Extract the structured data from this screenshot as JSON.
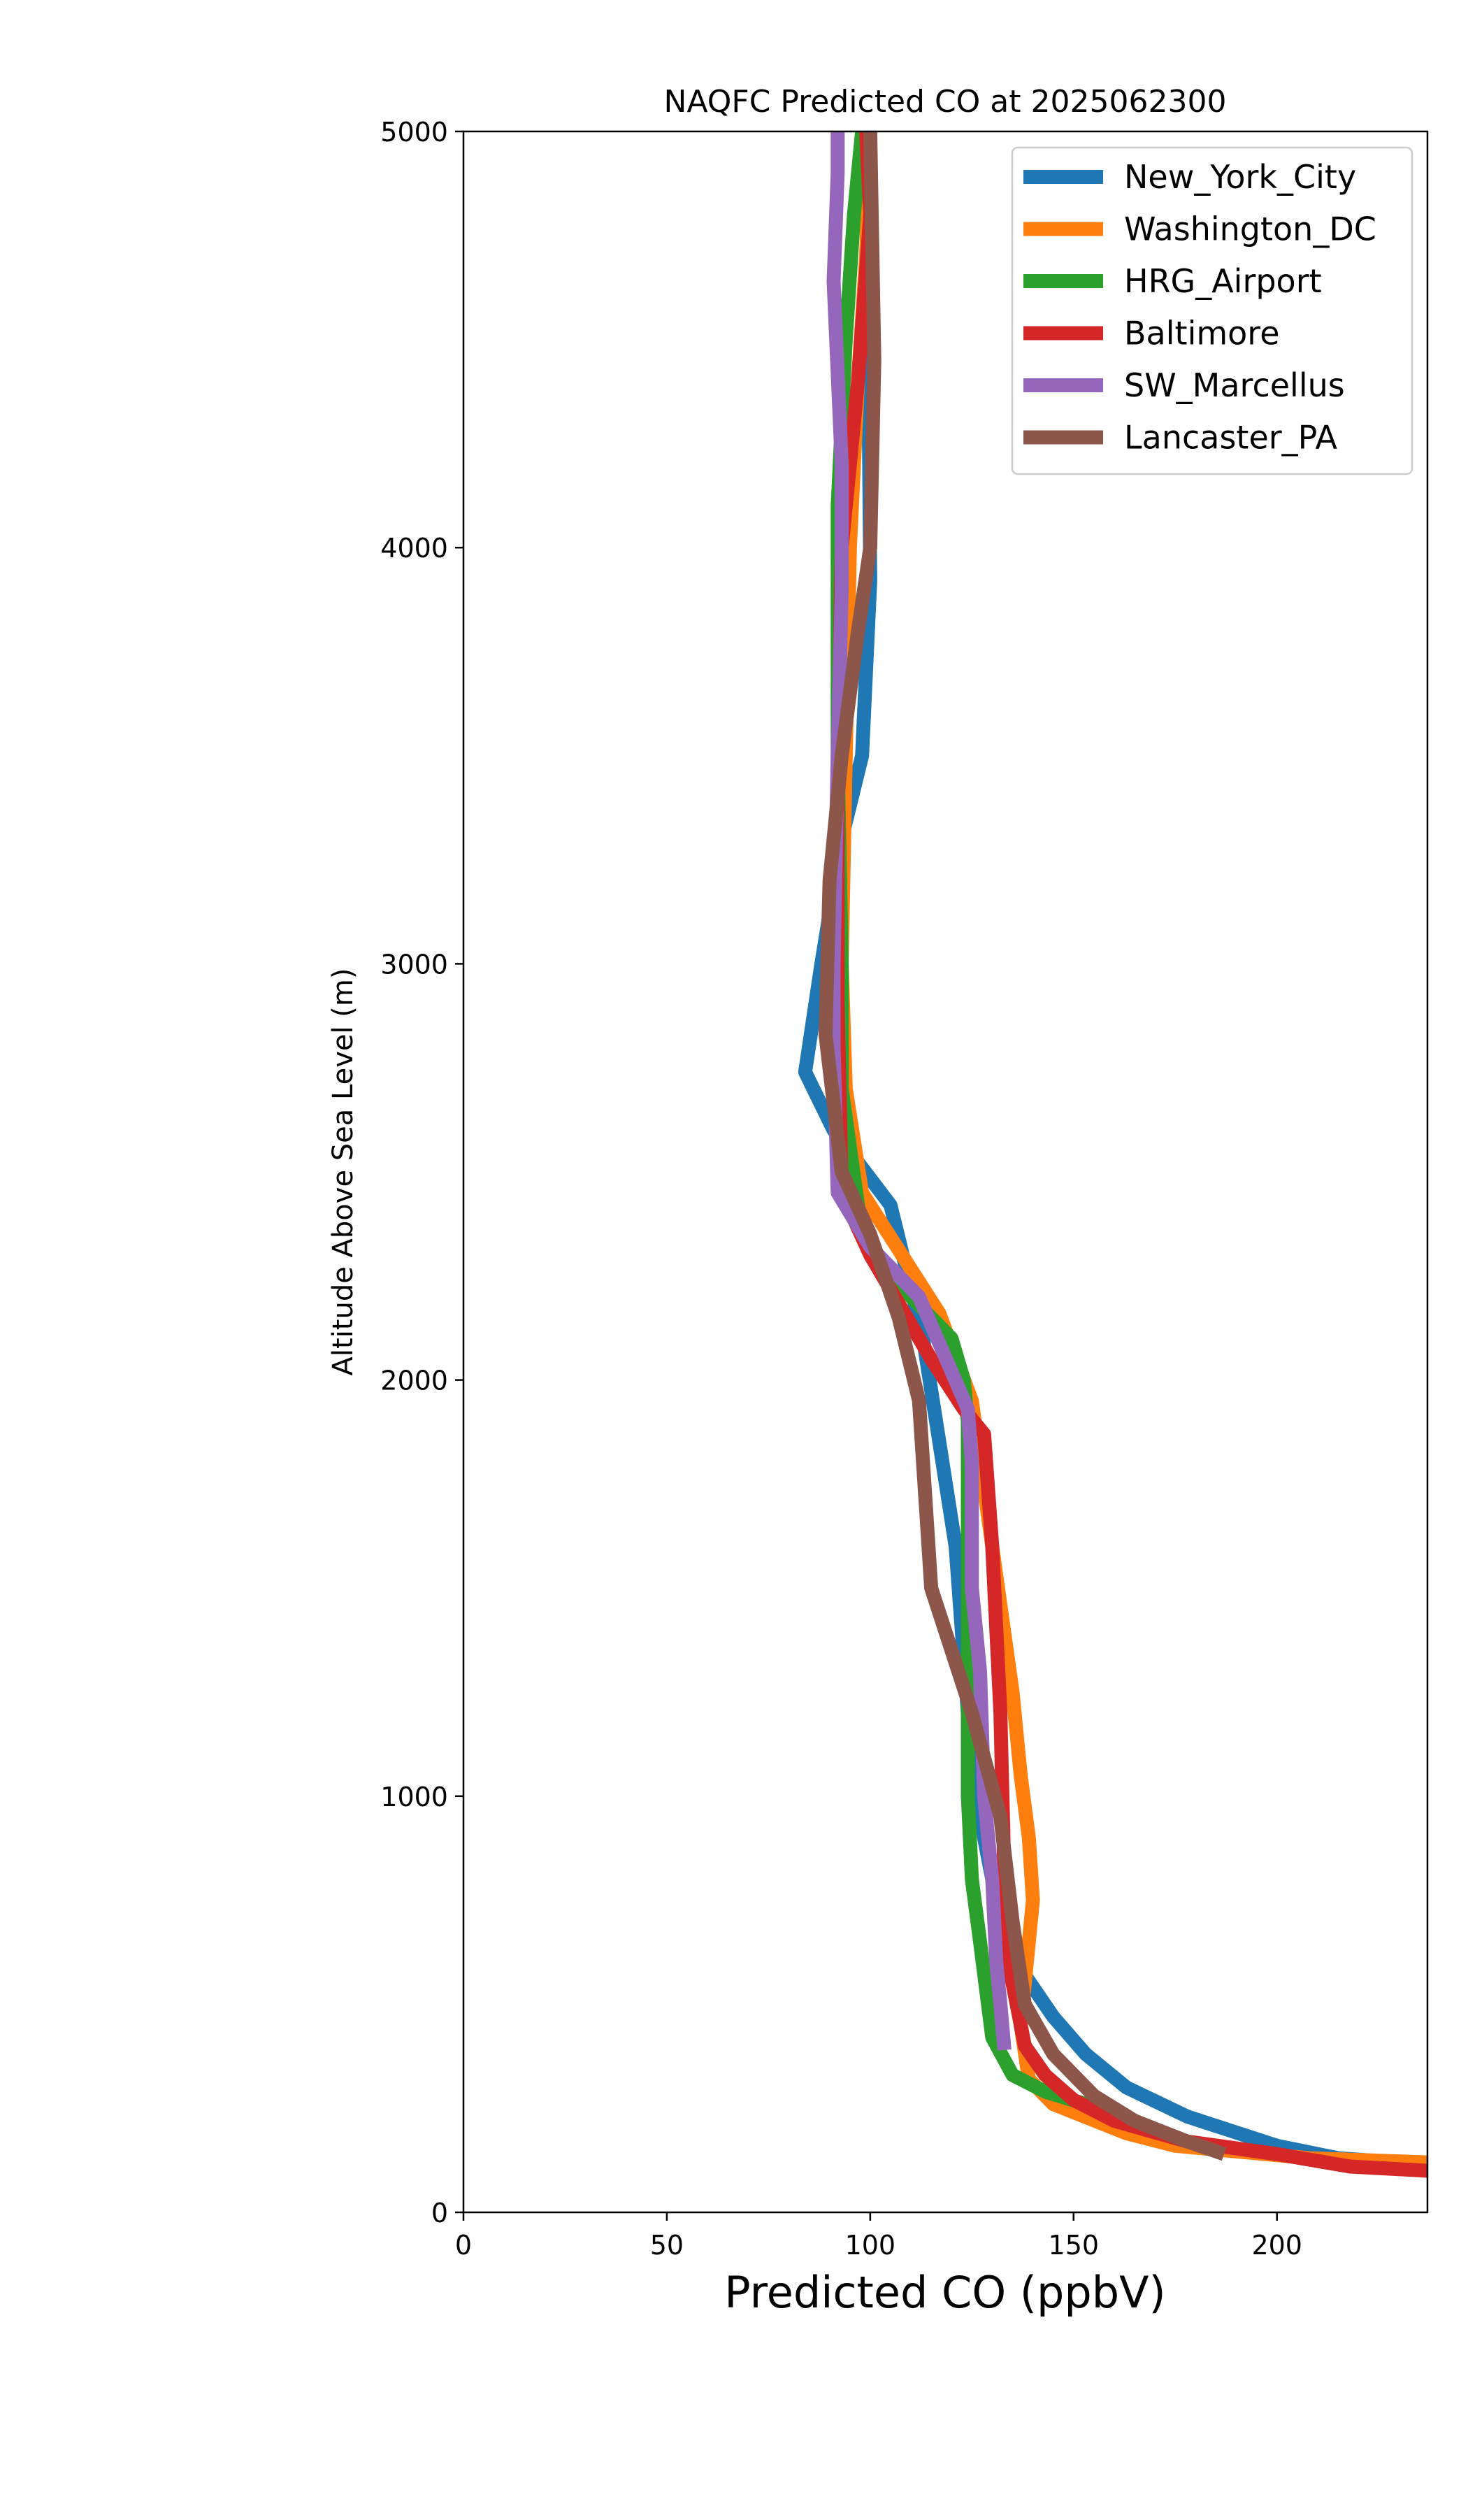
{
  "chart_data": {
    "type": "line",
    "title": "NAQFC Predicted CO at 2025062300",
    "xlabel": "Predicted CO (ppbV)",
    "ylabel": "Altitude Above Sea Level (m)",
    "xlim": [
      0,
      237
    ],
    "ylim": [
      0,
      5000
    ],
    "xticks": [
      "0",
      "50",
      "100",
      "150",
      "200"
    ],
    "yticks": [
      "0",
      "1000",
      "2000",
      "3000",
      "4000",
      "5000"
    ],
    "grid": false,
    "legend_position": "top-right",
    "series": [
      {
        "name": "New_York_City",
        "color": "#1f77b4",
        "x": [
          237,
          215,
          200,
          178,
          163,
          153,
          145,
          138,
          132,
          128,
          124,
          121,
          117,
          113,
          105,
          91,
          84,
          88,
          93,
          98,
          100,
          99
        ],
        "y": [
          115,
          130,
          160,
          230,
          300,
          380,
          470,
          570,
          700,
          900,
          1200,
          1600,
          1850,
          2100,
          2420,
          2600,
          2740,
          3000,
          3300,
          3500,
          3920,
          5000
        ]
      },
      {
        "name": "Washington_DC",
        "color": "#ff7f0e",
        "x": [
          237,
          208,
          175,
          163,
          145,
          139,
          137,
          140,
          139,
          137,
          135,
          130,
          125,
          117,
          98,
          94,
          93,
          94,
          95,
          97,
          99,
          100
        ],
        "y": [
          120,
          130,
          160,
          190,
          260,
          320,
          450,
          750,
          900,
          1050,
          1250,
          1600,
          1950,
          2160,
          2450,
          2700,
          3000,
          3500,
          4000,
          4400,
          4700,
          5000
        ]
      },
      {
        "name": "HRG_Airport",
        "color": "#2ca02c",
        "x": [
          163,
          143,
          135,
          130,
          127,
          125,
          124,
          124,
          124,
          123,
          120,
          110,
          98,
          93,
          93,
          92,
          92,
          94,
          96,
          98
        ],
        "y": [
          230,
          290,
          330,
          420,
          650,
          800,
          1000,
          1400,
          1900,
          2000,
          2100,
          2200,
          2350,
          2700,
          3000,
          3500,
          4100,
          4500,
          4800,
          5000
        ]
      },
      {
        "name": "Baltimore",
        "color": "#d62728",
        "x": [
          237,
          218,
          200,
          178,
          160,
          150,
          143,
          138,
          134,
          133,
          132,
          130,
          128,
          123,
          115,
          100,
          93,
          92,
          92,
          93,
          97,
          100,
          99
        ],
        "y": [
          100,
          110,
          140,
          170,
          220,
          270,
          330,
          400,
          600,
          800,
          1200,
          1600,
          1870,
          1930,
          2050,
          2300,
          2450,
          2900,
          3400,
          4000,
          4400,
          4800,
          5000
        ]
      },
      {
        "name": "SW_Marcellus",
        "color": "#9467bd",
        "x": [
          133,
          132,
          131,
          130,
          128,
          127,
          125,
          125,
          124,
          112,
          100,
          92,
          91,
          91,
          92,
          93,
          93,
          91,
          92,
          92
        ],
        "y": [
          390,
          500,
          600,
          800,
          1000,
          1300,
          1500,
          1800,
          1930,
          2200,
          2320,
          2450,
          2800,
          3000,
          3500,
          3900,
          4200,
          4640,
          4900,
          5000
        ]
      },
      {
        "name": "Lancaster_PA",
        "color": "#8c564b",
        "x": [
          187,
          178,
          165,
          155,
          145,
          138,
          135,
          132,
          125,
          115,
          112,
          107,
          100,
          93,
          89,
          90,
          93,
          97,
          100,
          101,
          100
        ],
        "y": [
          140,
          170,
          220,
          280,
          380,
          500,
          700,
          950,
          1200,
          1500,
          1950,
          2150,
          2350,
          2500,
          2830,
          3200,
          3500,
          3800,
          4000,
          4450,
          5000
        ]
      }
    ]
  }
}
